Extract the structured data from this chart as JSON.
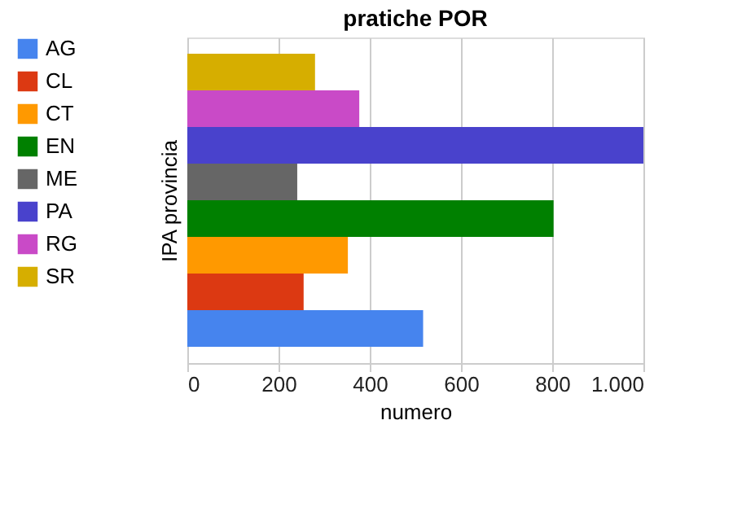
{
  "chart_data": {
    "type": "bar",
    "title": "pratiche POR",
    "xlabel": "numero",
    "ylabel": "IPA provincia",
    "orientation": "horizontal",
    "categories": [
      null
    ],
    "series": [
      {
        "name": "AG",
        "color": "#4684ee",
        "values": [
          517
        ]
      },
      {
        "name": "CL",
        "color": "#dc3912",
        "values": [
          255
        ]
      },
      {
        "name": "CT",
        "color": "#ff9900",
        "values": [
          352
        ]
      },
      {
        "name": "EN",
        "color": "#008000",
        "values": [
          803
        ]
      },
      {
        "name": "ME",
        "color": "#666666",
        "values": [
          241
        ]
      },
      {
        "name": "PA",
        "color": "#4942cc",
        "values": [
          1000
        ]
      },
      {
        "name": "RG",
        "color": "#c94ac7",
        "values": [
          377
        ]
      },
      {
        "name": "SR",
        "color": "#d6ae00",
        "values": [
          280
        ]
      }
    ],
    "xlim": [
      0,
      1000
    ],
    "xticks": [
      0,
      200,
      400,
      600,
      800,
      {
        "value": 1000,
        "label": "1.000"
      }
    ],
    "grid": "x",
    "legend": "left",
    "tick_labels": "x"
  }
}
